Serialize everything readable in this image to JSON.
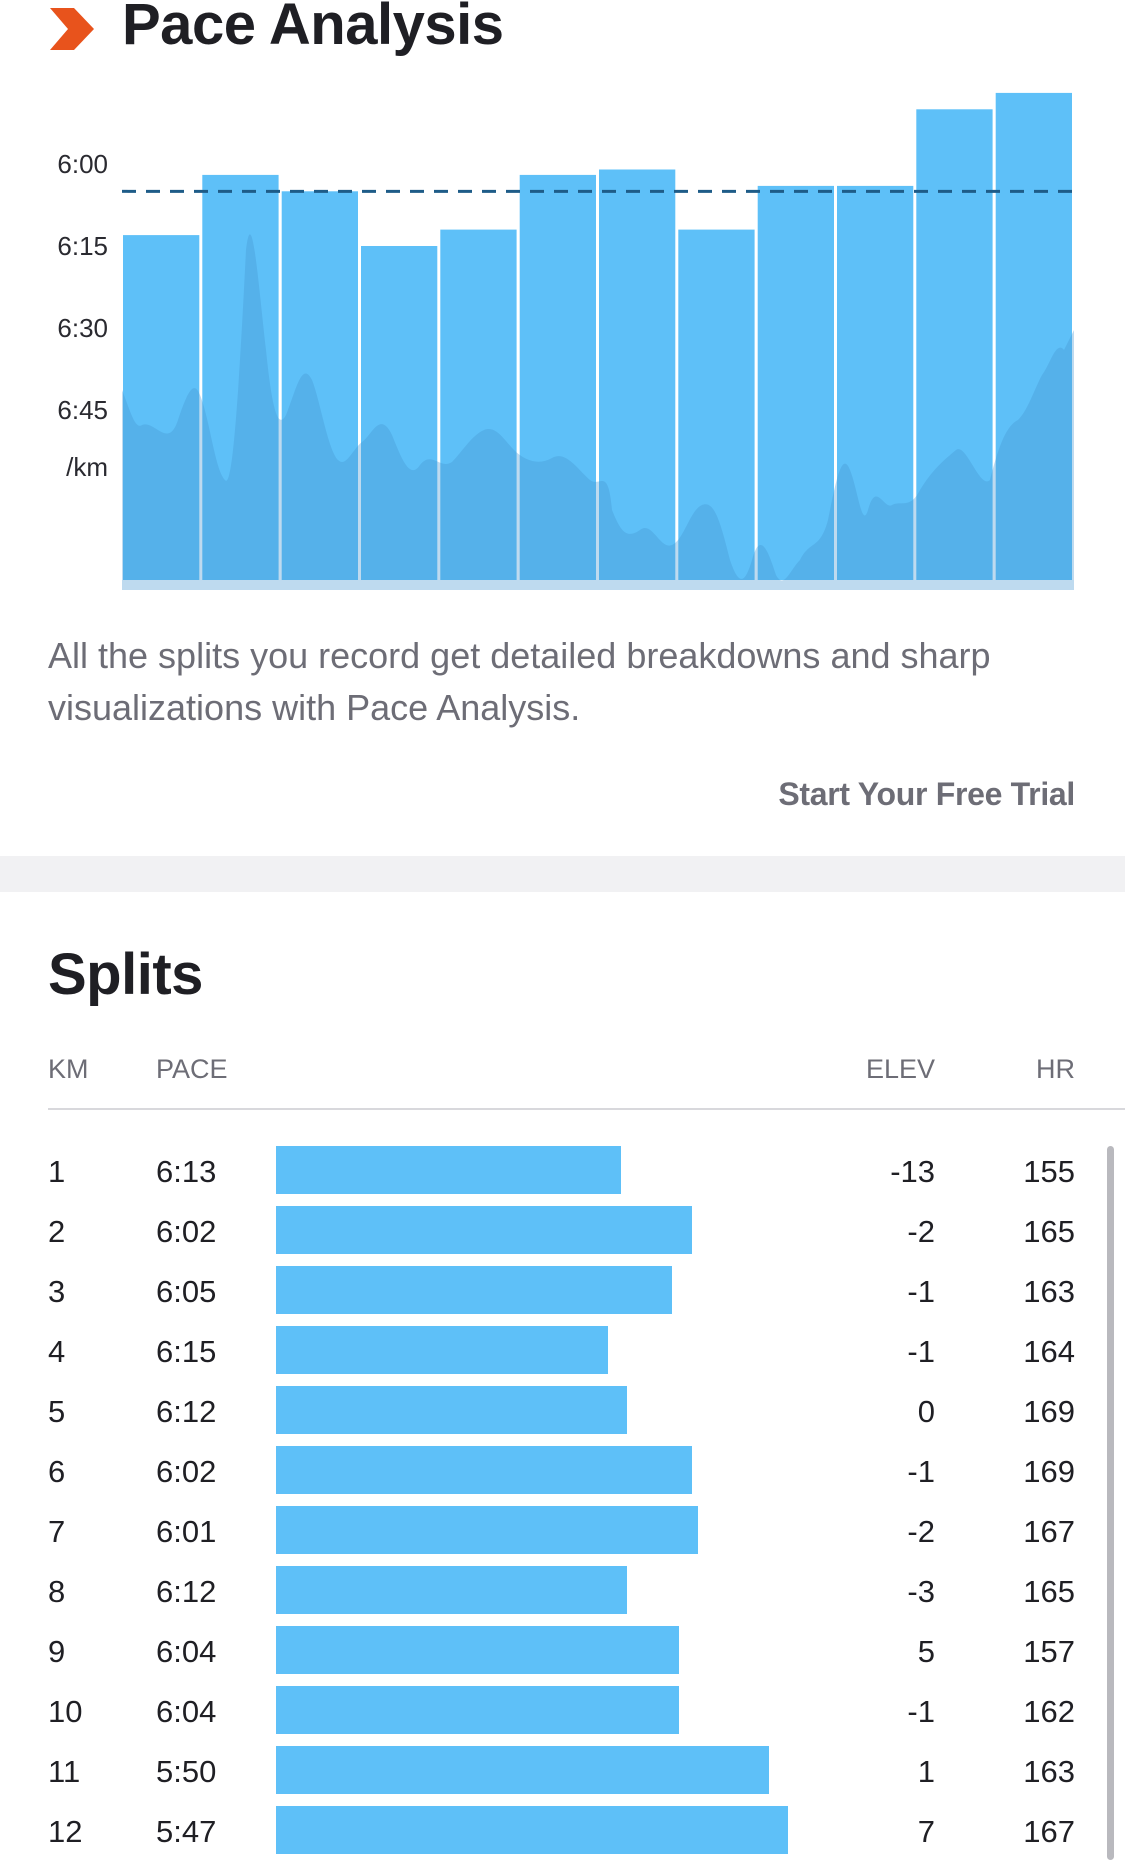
{
  "header": {
    "title": "Pace Analysis",
    "brand_color": "#e8531c",
    "icon": "chevron-right-icon"
  },
  "chart_data": {
    "type": "bar",
    "y_tick_labels": [
      "6:00",
      "6:15",
      "6:30",
      "6:45",
      "/km"
    ],
    "y_ticks_seconds": [
      360,
      375,
      390,
      405
    ],
    "ylim_seconds_per_km": [
      420,
      345
    ],
    "reference_line_pace": "6:05",
    "reference_line_seconds": 365,
    "bar_color": "#5ec0f8",
    "reference_line_color": "#1e5c88",
    "background_series": "pace trace (lighter overlay)",
    "categories": [
      "1",
      "2",
      "3",
      "4",
      "5",
      "6",
      "7",
      "8",
      "9",
      "10",
      "11",
      "12"
    ],
    "values_seconds_per_km": [
      373,
      362,
      365,
      375,
      372,
      362,
      361,
      372,
      364,
      364,
      350,
      347
    ]
  },
  "description": "All the splits you record get detailed breakdowns and sharp visualizations with Pace Analysis.",
  "cta": {
    "label": "Start Your Free Trial"
  },
  "splits": {
    "title": "Splits",
    "columns": {
      "km": "KM",
      "pace": "PACE",
      "elev": "ELEV",
      "hr": "HR"
    },
    "bar_color": "#5ec0f8",
    "rows": [
      {
        "km": "1",
        "pace": "6:13",
        "elev": "-13",
        "hr": "155",
        "pace_seconds": 373
      },
      {
        "km": "2",
        "pace": "6:02",
        "elev": "-2",
        "hr": "165",
        "pace_seconds": 362
      },
      {
        "km": "3",
        "pace": "6:05",
        "elev": "-1",
        "hr": "163",
        "pace_seconds": 365
      },
      {
        "km": "4",
        "pace": "6:15",
        "elev": "-1",
        "hr": "164",
        "pace_seconds": 375
      },
      {
        "km": "5",
        "pace": "6:12",
        "elev": "0",
        "hr": "169",
        "pace_seconds": 372
      },
      {
        "km": "6",
        "pace": "6:02",
        "elev": "-1",
        "hr": "169",
        "pace_seconds": 362
      },
      {
        "km": "7",
        "pace": "6:01",
        "elev": "-2",
        "hr": "167",
        "pace_seconds": 361
      },
      {
        "km": "8",
        "pace": "6:12",
        "elev": "-3",
        "hr": "165",
        "pace_seconds": 372
      },
      {
        "km": "9",
        "pace": "6:04",
        "elev": "5",
        "hr": "157",
        "pace_seconds": 364
      },
      {
        "km": "10",
        "pace": "6:04",
        "elev": "-1",
        "hr": "162",
        "pace_seconds": 364
      },
      {
        "km": "11",
        "pace": "5:50",
        "elev": "1",
        "hr": "163",
        "pace_seconds": 350
      },
      {
        "km": "12",
        "pace": "5:47",
        "elev": "7",
        "hr": "167",
        "pace_seconds": 347
      }
    ]
  }
}
